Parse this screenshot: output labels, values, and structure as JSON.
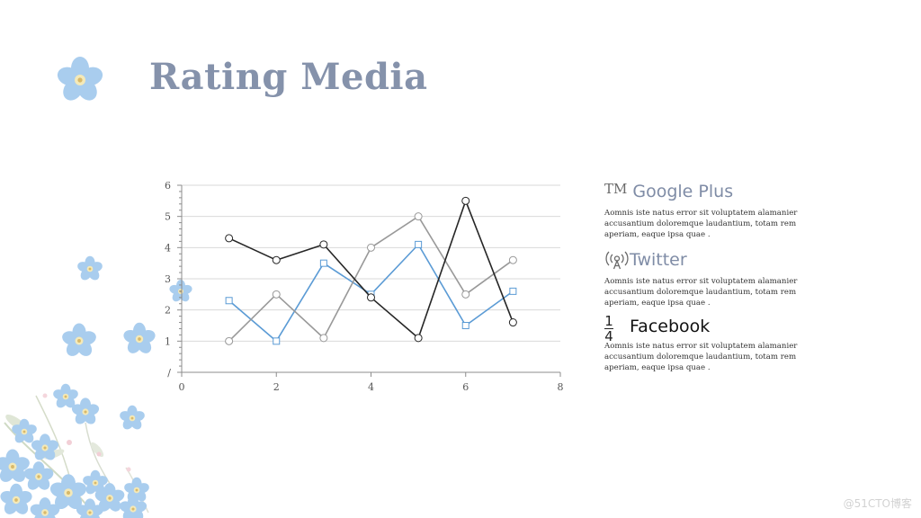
{
  "slide": {
    "title": "Rating Media",
    "watermark": "@51CTO博客"
  },
  "legend": [
    {
      "icon": "trademark-icon",
      "icon_glyph": "TM",
      "name": "Google Plus",
      "description": "Aomnis iste natus error sit voluptatem alamanier accusantium doloremque laudantium, totam rem aperiam, eaque ipsa quae ."
    },
    {
      "icon": "broadcast-tower-icon",
      "name": "Twitter",
      "description": "Aomnis iste natus error sit voluptatem alamanier accusantium doloremque laudantium, totam rem aperiam, eaque ipsa quae ."
    },
    {
      "icon": "fraction-icon",
      "icon_numerator": "1",
      "icon_denominator": "4",
      "name": "Facebook",
      "description": "Aomnis iste natus error sit voluptatem alamanier accusantium doloremque laudantium, totam rem aperiam, eaque ipsa quae ."
    }
  ],
  "chart_data": {
    "type": "line",
    "title": "",
    "xlabel": "",
    "ylabel": "",
    "xlim": [
      0,
      8
    ],
    "ylim": [
      0,
      6
    ],
    "x_ticks": [
      "0",
      "2",
      "4",
      "6",
      "8"
    ],
    "y_ticks": [
      "/",
      "1",
      "2",
      "3",
      "4",
      "5",
      "6"
    ],
    "grid": "horizontal",
    "legend": "right",
    "series": [
      {
        "name": "Google Plus",
        "color": "#5b9bd5",
        "marker": "square",
        "x": [
          1,
          2,
          3,
          4,
          5,
          6,
          7
        ],
        "values": [
          2.3,
          1.0,
          3.5,
          2.5,
          4.1,
          1.5,
          2.6
        ]
      },
      {
        "name": "Twitter",
        "color": "#999999",
        "marker": "circle",
        "x": [
          1,
          2,
          3,
          4,
          5,
          6,
          7
        ],
        "values": [
          1.0,
          2.5,
          1.1,
          4.0,
          5.0,
          2.5,
          3.6
        ]
      },
      {
        "name": "Facebook",
        "color": "#262626",
        "marker": "circle",
        "x": [
          1,
          2,
          3,
          4,
          5,
          6,
          7
        ],
        "values": [
          4.3,
          3.6,
          4.1,
          2.4,
          1.1,
          5.5,
          1.6
        ]
      }
    ]
  }
}
